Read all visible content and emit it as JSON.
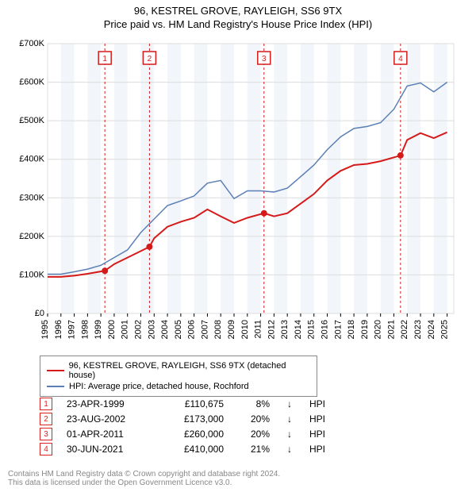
{
  "title": {
    "line1": "96, KESTREL GROVE, RAYLEIGH, SS6 9TX",
    "line2": "Price paid vs. HM Land Registry's House Price Index (HPI)"
  },
  "chart": {
    "type": "line",
    "background_color": "#ffffff",
    "plot_bg": "#ffffff",
    "alt_band_color": "#f2f6fa",
    "grid_color": "#dcdcdc",
    "axis_color": "#000000",
    "y_min": 0,
    "y_max": 700000,
    "y_tick_step": 100000,
    "y_ticks": [
      "£0",
      "£100K",
      "£200K",
      "£300K",
      "£400K",
      "£500K",
      "£600K",
      "£700K"
    ],
    "x_min": 1995,
    "x_max": 2025.5,
    "x_ticks": [
      1995,
      1996,
      1997,
      1998,
      1999,
      2000,
      2001,
      2002,
      2003,
      2004,
      2005,
      2006,
      2007,
      2008,
      2009,
      2010,
      2011,
      2012,
      2013,
      2014,
      2015,
      2016,
      2017,
      2018,
      2019,
      2020,
      2021,
      2022,
      2023,
      2024,
      2025
    ],
    "series": [
      {
        "name": "property",
        "label": "96, KESTREL GROVE, RAYLEIGH, SS6 9TX (detached house)",
        "color": "#d61a1a",
        "width": 2,
        "data": [
          [
            1995,
            95000
          ],
          [
            1996,
            95000
          ],
          [
            1997,
            98000
          ],
          [
            1998,
            103000
          ],
          [
            1999.3,
            110675
          ],
          [
            2000,
            128000
          ],
          [
            2001,
            145000
          ],
          [
            2002.65,
            173000
          ],
          [
            2003,
            195000
          ],
          [
            2004,
            225000
          ],
          [
            2005,
            238000
          ],
          [
            2006,
            248000
          ],
          [
            2007,
            270000
          ],
          [
            2008,
            252000
          ],
          [
            2009,
            235000
          ],
          [
            2010,
            248000
          ],
          [
            2011.25,
            260000
          ],
          [
            2012,
            252000
          ],
          [
            2013,
            260000
          ],
          [
            2014,
            285000
          ],
          [
            2015,
            310000
          ],
          [
            2016,
            345000
          ],
          [
            2017,
            370000
          ],
          [
            2018,
            385000
          ],
          [
            2019,
            388000
          ],
          [
            2020,
            395000
          ],
          [
            2021.5,
            410000
          ],
          [
            2022,
            450000
          ],
          [
            2023,
            468000
          ],
          [
            2024,
            455000
          ],
          [
            2025,
            470000
          ]
        ]
      },
      {
        "name": "hpi",
        "label": "HPI: Average price, detached house, Rochford",
        "color": "#5a7fb5",
        "width": 1.5,
        "data": [
          [
            1995,
            102000
          ],
          [
            1996,
            102000
          ],
          [
            1997,
            108000
          ],
          [
            1998,
            115000
          ],
          [
            1999,
            125000
          ],
          [
            2000,
            145000
          ],
          [
            2001,
            165000
          ],
          [
            2002,
            210000
          ],
          [
            2003,
            245000
          ],
          [
            2004,
            280000
          ],
          [
            2005,
            292000
          ],
          [
            2006,
            305000
          ],
          [
            2007,
            338000
          ],
          [
            2008,
            345000
          ],
          [
            2009,
            298000
          ],
          [
            2010,
            318000
          ],
          [
            2011,
            318000
          ],
          [
            2012,
            315000
          ],
          [
            2013,
            325000
          ],
          [
            2014,
            355000
          ],
          [
            2015,
            385000
          ],
          [
            2016,
            425000
          ],
          [
            2017,
            458000
          ],
          [
            2018,
            480000
          ],
          [
            2019,
            485000
          ],
          [
            2020,
            495000
          ],
          [
            2021,
            530000
          ],
          [
            2022,
            590000
          ],
          [
            2023,
            598000
          ],
          [
            2024,
            575000
          ],
          [
            2025,
            600000
          ]
        ]
      }
    ],
    "markers": [
      {
        "n": "1",
        "x": 1999.3,
        "y": 110675
      },
      {
        "n": "2",
        "x": 2002.65,
        "y": 173000
      },
      {
        "n": "3",
        "x": 2011.25,
        "y": 260000
      },
      {
        "n": "4",
        "x": 2021.5,
        "y": 410000
      }
    ],
    "marker_color": "#d61a1a",
    "marker_fill": "#ffffff",
    "marker_dashline_color": "#d61a1a"
  },
  "legend": {
    "items": [
      {
        "color": "#d61a1a",
        "label": "96, KESTREL GROVE, RAYLEIGH, SS6 9TX (detached house)"
      },
      {
        "color": "#5a7fb5",
        "label": "HPI: Average price, detached house, Rochford"
      }
    ]
  },
  "transactions": [
    {
      "n": "1",
      "date": "23-APR-1999",
      "price": "£110,675",
      "pct": "8%",
      "dir": "↓",
      "vs": "HPI"
    },
    {
      "n": "2",
      "date": "23-AUG-2002",
      "price": "£173,000",
      "pct": "20%",
      "dir": "↓",
      "vs": "HPI"
    },
    {
      "n": "3",
      "date": "01-APR-2011",
      "price": "£260,000",
      "pct": "20%",
      "dir": "↓",
      "vs": "HPI"
    },
    {
      "n": "4",
      "date": "30-JUN-2021",
      "price": "£410,000",
      "pct": "21%",
      "dir": "↓",
      "vs": "HPI"
    }
  ],
  "footer": {
    "line1": "Contains HM Land Registry data © Crown copyright and database right 2024.",
    "line2": "This data is licensed under the Open Government Licence v3.0."
  }
}
